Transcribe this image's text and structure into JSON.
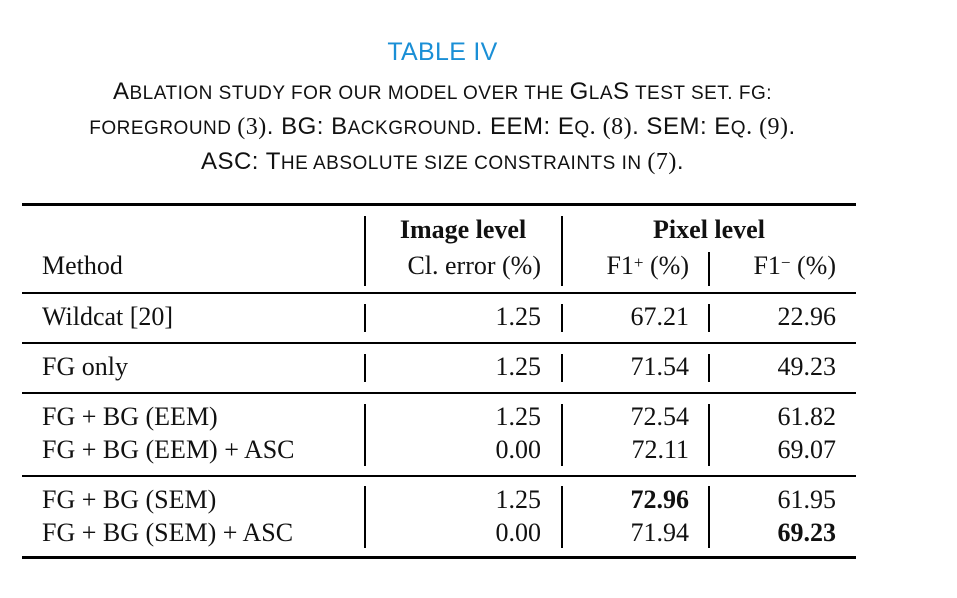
{
  "caption": {
    "table_number": "TABLE IV",
    "line1": {
      "A": "A",
      "a": "BLATION STUDY FOR OUR MODEL OVER THE ",
      "G": "G",
      "las": "LA",
      "S": "S",
      "tail": " TEST SET. FG:"
    },
    "line2": {
      "fg": "FOREGROUND ",
      "ref3": "(3)",
      "a": ". BG: B",
      "ack": "ACKGROUND",
      "b": ". EEM: E",
      "q1": "Q",
      "ref8": ". (8)",
      "c": ". SEM: E",
      "q2": "Q",
      "ref9": ". (9)",
      "d": "."
    },
    "line3": {
      "a": "ASC: T",
      "he": "HE ABSOLUTE SIZE CONSTRAINTS IN ",
      "ref7": "(7)",
      "d": "."
    }
  },
  "table": {
    "headers": {
      "method": "Method",
      "image_level": "Image level",
      "cl_error": "Cl. error (%)",
      "pixel_level": "Pixel level",
      "f1_plus": {
        "base": "F1",
        "sup": "+",
        "unit": " (%)"
      },
      "f1_minus": {
        "base": "F1",
        "sup": "−",
        "unit": " (%)"
      }
    },
    "rows": [
      {
        "method": "Wildcat [20]",
        "cl_error": "1.25",
        "f1_plus": "67.21",
        "f1_minus": "22.96"
      },
      {
        "method": "FG only",
        "cl_error": "1.25",
        "f1_plus": "71.54",
        "f1_minus": "49.23"
      },
      {
        "method": "FG + BG (EEM)",
        "cl_error": "1.25",
        "f1_plus": "72.54",
        "f1_minus": "61.82"
      },
      {
        "method": "FG + BG (EEM) + ASC",
        "cl_error": "0.00",
        "f1_plus": "72.11",
        "f1_minus": "69.07"
      },
      {
        "method": "FG + BG (SEM)",
        "cl_error": "1.25",
        "f1_plus": "72.96",
        "f1_minus": "61.95"
      },
      {
        "method": "FG + BG (SEM) + ASC",
        "cl_error": "0.00",
        "f1_plus": "71.94",
        "f1_minus": "69.23"
      }
    ],
    "bold_cells": [
      "rows.4.f1_plus",
      "rows.5.f1_minus"
    ]
  }
}
